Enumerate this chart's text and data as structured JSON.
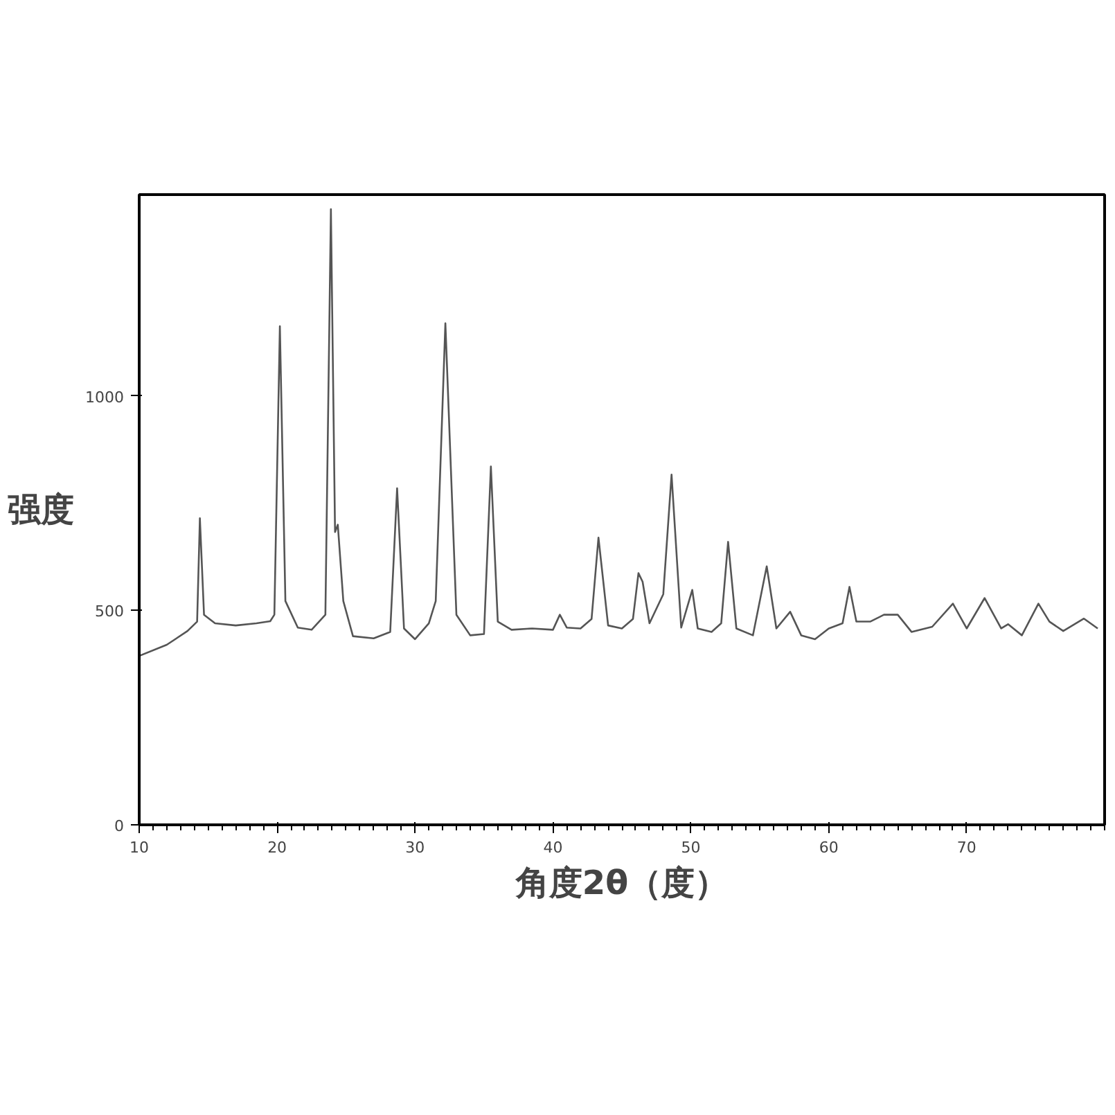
{
  "chart_data": {
    "type": "line",
    "xlabel": "角度2θ（度）",
    "ylabel": "强度",
    "xlim": [
      10,
      80
    ],
    "ylim": [
      0,
      1470
    ],
    "xticks": [
      10,
      20,
      30,
      40,
      50,
      60,
      70
    ],
    "yticks": [
      0,
      500,
      1000
    ],
    "grid": false,
    "marker": "none",
    "line_style": "solid",
    "series": [
      {
        "color": "#555555",
        "x": [
          10,
          12,
          13.5,
          14.2,
          14.4,
          14.7,
          15.5,
          17,
          18.5,
          19.5,
          19.8,
          20.2,
          20.6,
          21.5,
          22.5,
          23.5,
          23.9,
          24.2,
          24.4,
          24.8,
          25.5,
          27,
          28.2,
          28.7,
          29.2,
          30,
          31,
          31.5,
          32.2,
          33,
          34,
          35,
          35.5,
          36,
          37,
          38.5,
          40,
          40.5,
          41,
          42,
          42.8,
          43.3,
          44,
          45,
          45.8,
          46.2,
          46.5,
          47,
          48,
          48.6,
          49.3,
          50.1,
          50.5,
          51.5,
          52.2,
          52.7,
          53.3,
          54.5,
          55.5,
          56.2,
          57.2,
          58,
          59,
          60,
          61,
          61.5,
          62,
          63,
          64,
          65,
          66,
          67.5,
          69,
          70,
          71.3,
          72.5,
          73,
          74,
          75.2,
          76,
          77,
          78.5,
          79.5
        ],
        "values": [
          394,
          420,
          452,
          474,
          715,
          490,
          470,
          465,
          470,
          475,
          490,
          1163,
          522,
          460,
          455,
          490,
          1436,
          683,
          700,
          522,
          440,
          435,
          450,
          785,
          458,
          433,
          470,
          522,
          1170,
          490,
          442,
          445,
          836,
          474,
          455,
          458,
          455,
          490,
          460,
          458,
          480,
          670,
          465,
          458,
          480,
          587,
          567,
          470,
          538,
          817,
          460,
          548,
          458,
          450,
          470,
          660,
          458,
          442,
          603,
          458,
          497,
          442,
          433,
          458,
          470,
          555,
          474,
          474,
          490,
          490,
          450,
          462,
          516,
          458,
          529,
          458,
          468,
          442,
          516,
          474,
          452,
          481,
          458
        ]
      }
    ]
  }
}
